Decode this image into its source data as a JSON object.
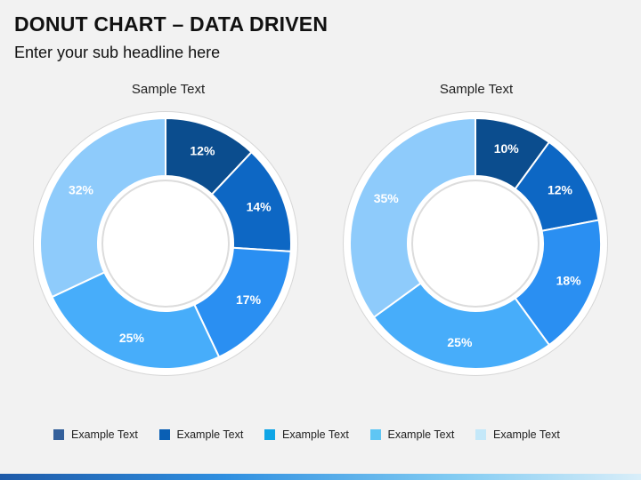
{
  "title": "DONUT CHART – DATA DRIVEN",
  "subtitle": "Enter your sub headline here",
  "chart_data": [
    {
      "type": "pie",
      "variant": "donut",
      "title": "Sample Text",
      "values": [
        12,
        14,
        17,
        25,
        32
      ],
      "labels": [
        "12%",
        "14%",
        "17%",
        "25%",
        "32%"
      ],
      "colors": [
        "#0b4d8e",
        "#0d67c4",
        "#2a8ff2",
        "#47adfa",
        "#8ecbfb"
      ]
    },
    {
      "type": "pie",
      "variant": "donut",
      "title": "Sample Text",
      "values": [
        10,
        12,
        18,
        25,
        35
      ],
      "labels": [
        "10%",
        "12%",
        "18%",
        "25%",
        "35%"
      ],
      "colors": [
        "#0b4d8e",
        "#0d67c4",
        "#2a8ff2",
        "#47adfa",
        "#8ecbfb"
      ]
    }
  ],
  "legend": [
    {
      "label": "Example Text",
      "color": "#34609b"
    },
    {
      "label": "Example Text",
      "color": "#0a5fb4"
    },
    {
      "label": "Example Text",
      "color": "#0fa5e6"
    },
    {
      "label": "Example Text",
      "color": "#5fc6f4"
    },
    {
      "label": "Example Text",
      "color": "#c4e8f9"
    }
  ]
}
